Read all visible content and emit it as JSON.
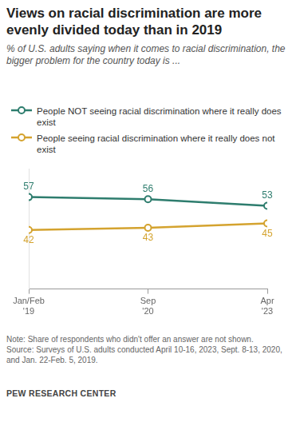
{
  "chart_data": {
    "type": "line",
    "title": "Views on racial discrimination are more evenly divided today than in 2019",
    "subtitle": "% of U.S. adults saying when it comes to racial discrimination, the bigger problem for the country today is ...",
    "categories": [
      "Jan/Feb '19",
      "Sep '20",
      "Apr '23"
    ],
    "series": [
      {
        "name": "People NOT seeing racial discrimination where it really does exist",
        "color": "#2e7d6e",
        "values": [
          57,
          56,
          53
        ]
      },
      {
        "name": "People seeing racial discrimination where it really does not exist",
        "color": "#d4a32f",
        "values": [
          42,
          43,
          45
        ]
      }
    ],
    "ylim": [
      15,
      70
    ],
    "data_labels": true,
    "tick_labels": "x",
    "grid": false,
    "legend": "top",
    "marker": "circle",
    "notes": [
      "Note: Share of respondents who didn't offer an answer are not shown.",
      "Source: Surveys of U.S. adults conducted April 10-16, 2023, Sept. 8-13, 2020, and Jan. 22-Feb. 5, 2019."
    ],
    "credit": "PEW RESEARCH CENTER"
  }
}
